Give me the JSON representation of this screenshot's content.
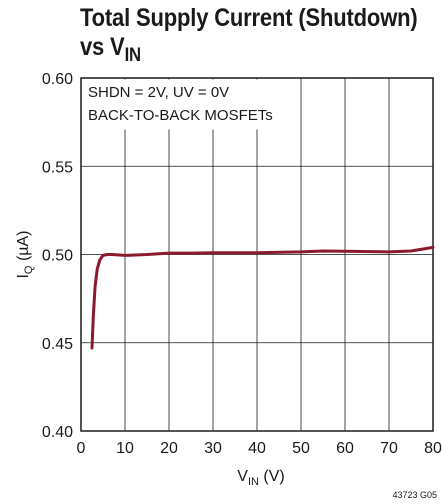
{
  "title": {
    "line1": "Total Supply Current (Shutdown)",
    "line2_prefix": "vs V",
    "line2_sub": "IN"
  },
  "figure_id": "43723 G05",
  "chart_data": {
    "type": "line",
    "x_label": {
      "main": "V",
      "sub": "IN",
      "unit": " (V)"
    },
    "y_label": {
      "main": "I",
      "sub": "Q",
      "unit": " (µA)"
    },
    "xlim": [
      0,
      80
    ],
    "ylim": [
      0.4,
      0.6
    ],
    "x_ticks": [
      "0",
      "10",
      "20",
      "30",
      "40",
      "50",
      "60",
      "70",
      "80"
    ],
    "y_ticks": [
      "0.40",
      "0.45",
      "0.50",
      "0.55",
      "0.60"
    ],
    "grid": true,
    "annotations": [
      "SHDN = 2V, UV = 0V",
      "BACK-TO-BACK MOSFETs"
    ],
    "series": [
      {
        "color": "#8b1a2e",
        "x": [
          2.5,
          2.8,
          3.2,
          3.7,
          4.3,
          5,
          6,
          7,
          10,
          15,
          20,
          25,
          30,
          40,
          50,
          55,
          60,
          70,
          75,
          80
        ],
        "y": [
          0.447,
          0.465,
          0.482,
          0.492,
          0.497,
          0.4995,
          0.5,
          0.5,
          0.4995,
          0.5,
          0.5008,
          0.5008,
          0.501,
          0.501,
          0.5015,
          0.502,
          0.5018,
          0.5015,
          0.502,
          0.504
        ]
      }
    ]
  }
}
